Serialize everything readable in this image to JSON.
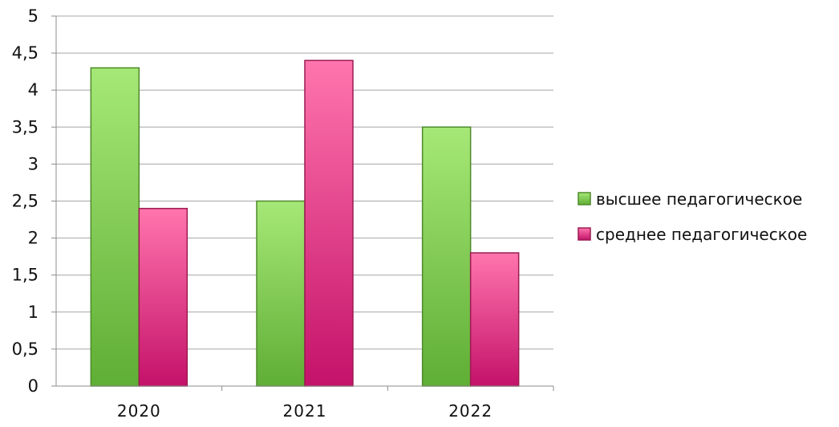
{
  "chart_data": {
    "type": "bar",
    "categories": [
      "2020",
      "2021",
      "2022"
    ],
    "series": [
      {
        "name": "высшее педагогическое",
        "values": [
          4.3,
          2.5,
          3.5
        ],
        "color": "#7cc54c"
      },
      {
        "name": "среднее педагогическое",
        "values": [
          2.4,
          4.4,
          1.8
        ],
        "color": "#e0457f"
      }
    ],
    "title": "",
    "xlabel": "",
    "ylabel": "",
    "ylim": [
      0,
      5
    ],
    "yticks": [
      "0",
      "0,5",
      "1",
      "1,5",
      "2",
      "2,5",
      "3",
      "3,5",
      "4",
      "4,5",
      "5"
    ],
    "grid": true,
    "legend_position": "right"
  }
}
